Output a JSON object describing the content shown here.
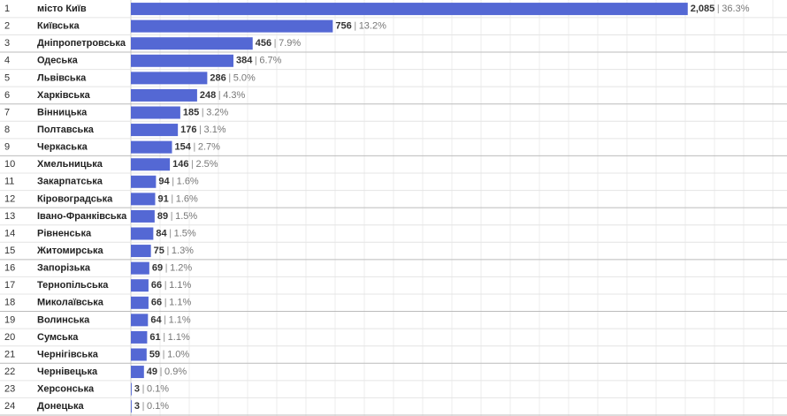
{
  "chart_data": {
    "type": "bar",
    "orientation": "horizontal",
    "color": "#5468d4",
    "ranks": [
      1,
      2,
      3,
      4,
      5,
      6,
      7,
      8,
      9,
      10,
      11,
      12,
      13,
      14,
      15,
      16,
      17,
      18,
      19,
      20,
      21,
      22,
      23,
      24
    ],
    "categories": [
      "місто Київ",
      "Київська",
      "Дніпропетровська",
      "Одеська",
      "Львівська",
      "Харківська",
      "Вінницька",
      "Полтавська",
      "Черкаська",
      "Хмельницька",
      "Закарпатська",
      "Кіровоградська",
      "Івано-Франківська",
      "Рівненська",
      "Житомирська",
      "Запорізька",
      "Тернопільська",
      "Миколаївська",
      "Волинська",
      "Сумська",
      "Чернігівська",
      "Чернівецька",
      "Херсонська",
      "Донецька"
    ],
    "values": [
      2085,
      756,
      456,
      384,
      286,
      248,
      185,
      176,
      154,
      146,
      94,
      91,
      89,
      84,
      75,
      69,
      66,
      66,
      64,
      61,
      59,
      49,
      3,
      3
    ],
    "value_labels": [
      "2,085",
      "756",
      "456",
      "384",
      "286",
      "248",
      "185",
      "176",
      "154",
      "146",
      "94",
      "91",
      "89",
      "84",
      "75",
      "69",
      "66",
      "66",
      "64",
      "61",
      "59",
      "49",
      "3",
      "3"
    ],
    "share_labels": [
      "36.3%",
      "13.2%",
      "7.9%",
      "6.7%",
      "5.0%",
      "4.3%",
      "3.2%",
      "3.1%",
      "2.7%",
      "2.5%",
      "1.6%",
      "1.6%",
      "1.5%",
      "1.5%",
      "1.3%",
      "1.2%",
      "1.1%",
      "1.1%",
      "1.1%",
      "1.1%",
      "1.0%",
      "0.9%",
      "0.1%",
      "0.1%"
    ],
    "xlim": [
      0,
      2450
    ]
  }
}
